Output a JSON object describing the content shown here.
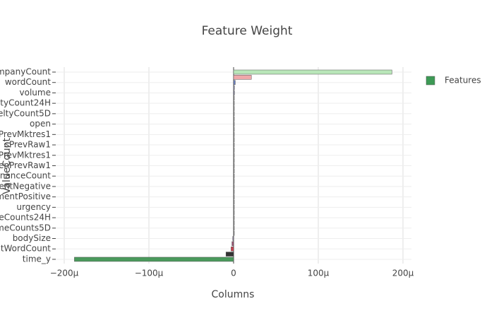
{
  "chart_data": {
    "type": "barh",
    "title": "Feature Weight",
    "x_label": "Columns",
    "y_label": "ValueCount",
    "categories": [
      "mpanyCount",
      null,
      "wordCount",
      null,
      "volume",
      null,
      "ltyCount24H",
      null,
      "eltyCount5D",
      null,
      "open",
      null,
      "PrevMktres1",
      null,
      "sPrevRaw1",
      null,
      "PrevMktres1",
      null,
      "enPrevRaw1",
      null,
      "nanceCount",
      null,
      "entNegative",
      null,
      "mentPositive",
      null,
      "urgency",
      null,
      "eCounts24H",
      null,
      "meCounts5D",
      null,
      "bodySize",
      null,
      "tWordCount",
      null,
      "time_y"
    ],
    "series": [
      {
        "name": "Features",
        "color": "#3d9a55",
        "values": [
          0.000187,
          2.1e-05,
          2e-06,
          1e-06,
          1e-06,
          0,
          0,
          0,
          0,
          0,
          0,
          0,
          0,
          0,
          0,
          0,
          0,
          0,
          0,
          0,
          0,
          0,
          0,
          0,
          0,
          0,
          0,
          0,
          0,
          0,
          0,
          0,
          -1e-06,
          -2e-06,
          -3e-06,
          -9e-06,
          -0.000188
        ],
        "colors": [
          "#b9e6b9",
          "#f0a8aa",
          "#6a7fc0",
          "#8888aa",
          "#777799",
          "#888888",
          "#888888",
          "#888888",
          "#888888",
          "#888888",
          "#888888",
          "#888888",
          "#888888",
          "#888888",
          "#888888",
          "#888888",
          "#888888",
          "#888888",
          "#888888",
          "#888888",
          "#888888",
          "#888888",
          "#888888",
          "#888888",
          "#888888",
          "#888888",
          "#888888",
          "#888888",
          "#888888",
          "#888888",
          "#888888",
          "#888888",
          "#8a7fa0",
          "#9a5070",
          "#c8404f",
          "#333333",
          "#4a9a5c"
        ]
      }
    ],
    "xlim": [
      -0.00021,
      0.00021
    ],
    "xticks": [
      {
        "value": -0.0002,
        "label": "−200μ"
      },
      {
        "value": -0.0001,
        "label": "−100μ"
      },
      0,
      {
        "value": 0.0001,
        "label": "100μ"
      },
      {
        "value": 0.0002,
        "label": "200μ"
      }
    ],
    "grid": true,
    "legend": "top-right"
  }
}
